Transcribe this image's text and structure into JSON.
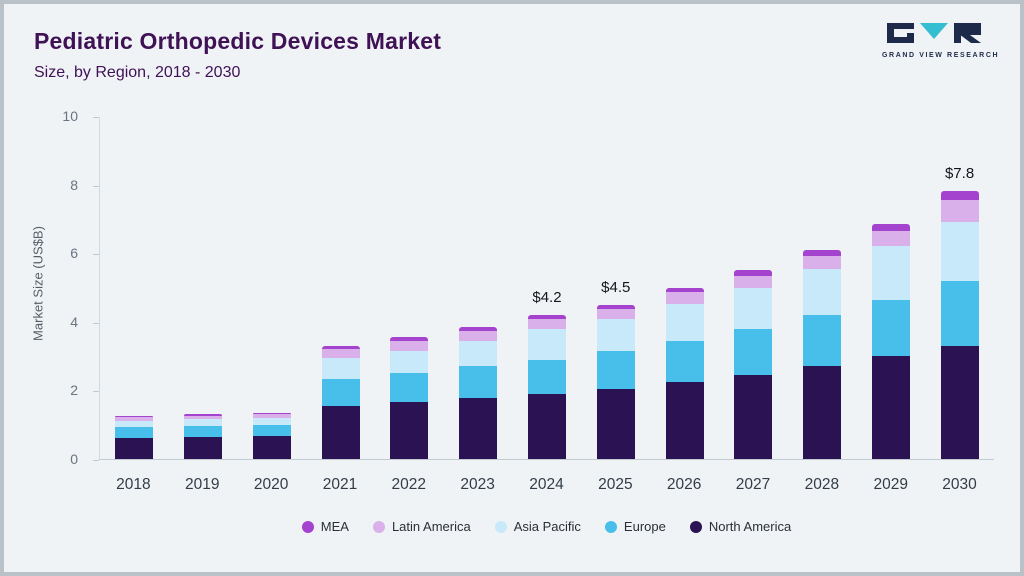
{
  "header": {
    "title": "Pediatric Orthopedic Devices Market",
    "subtitle": "Size, by Region, 2018 - 2030",
    "logo_text": "GRAND VIEW RESEARCH"
  },
  "chart_data": {
    "type": "bar",
    "stacked": true,
    "title": "Pediatric Orthopedic Devices Market Size, by Region, 2018 - 2030",
    "xlabel": "",
    "ylabel": "Market Size (US$B)",
    "ylim": [
      0,
      10
    ],
    "yticks": [
      0,
      2,
      4,
      6,
      8,
      10
    ],
    "grid": false,
    "legend_position": "bottom",
    "categories": [
      2018,
      2019,
      2020,
      2021,
      2022,
      2023,
      2024,
      2025,
      2026,
      2027,
      2028,
      2029,
      2030
    ],
    "series": [
      {
        "name": "North America",
        "color": "#2b1252",
        "values": [
          0.62,
          0.64,
          0.66,
          1.55,
          1.65,
          1.78,
          1.9,
          2.05,
          2.25,
          2.45,
          2.7,
          3.0,
          3.3
        ]
      },
      {
        "name": "Europe",
        "color": "#47bfea",
        "values": [
          0.3,
          0.31,
          0.33,
          0.78,
          0.85,
          0.92,
          1.0,
          1.1,
          1.2,
          1.35,
          1.5,
          1.65,
          1.9
        ]
      },
      {
        "name": "Asia Pacific",
        "color": "#c7e9fa",
        "values": [
          0.2,
          0.21,
          0.22,
          0.6,
          0.65,
          0.75,
          0.88,
          0.93,
          1.08,
          1.18,
          1.33,
          1.55,
          1.72
        ]
      },
      {
        "name": "Latin America",
        "color": "#d9b0ea",
        "values": [
          0.09,
          0.09,
          0.1,
          0.27,
          0.29,
          0.28,
          0.3,
          0.3,
          0.33,
          0.36,
          0.4,
          0.45,
          0.63
        ]
      },
      {
        "name": "MEA",
        "color": "#a443ce",
        "values": [
          0.04,
          0.05,
          0.05,
          0.1,
          0.11,
          0.12,
          0.12,
          0.12,
          0.14,
          0.16,
          0.17,
          0.2,
          0.25
        ]
      }
    ],
    "legend_order": [
      "MEA",
      "Latin America",
      "Asia Pacific",
      "Europe",
      "North America"
    ],
    "annotations": {
      "2024": "$4.2",
      "2025": "$4.5",
      "2030": "$7.8"
    },
    "totals": [
      1.25,
      1.3,
      1.36,
      3.3,
      3.55,
      3.85,
      4.2,
      4.5,
      5.0,
      5.5,
      6.1,
      6.85,
      7.8
    ]
  },
  "colors": {
    "background": "#f0f3f6",
    "frame_border": "#b9c1c9",
    "title_text": "#3f1155",
    "logo_navy": "#1e2a4a",
    "logo_teal": "#35bdd1"
  }
}
